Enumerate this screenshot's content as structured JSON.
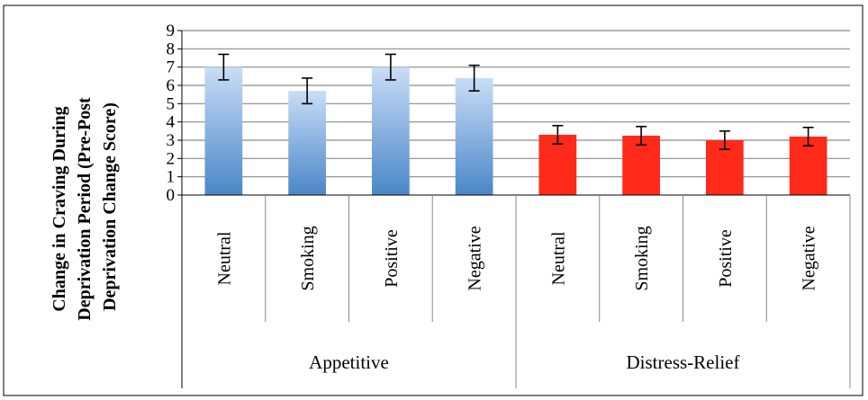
{
  "chart_data": {
    "type": "bar",
    "title": "",
    "ylabel_lines": [
      "Change in Craving During",
      "Deprivation Period (Pre-Post",
      "Deprivation Change Score)"
    ],
    "xlabel": "",
    "ylim": [
      0,
      9
    ],
    "yticks": [
      0,
      1,
      2,
      3,
      4,
      5,
      6,
      7,
      8,
      9
    ],
    "grid": true,
    "legend": "none",
    "groups": [
      {
        "name": "Appetitive",
        "color_top": "#c9ddf7",
        "color_bottom": "#4a86c8",
        "categories": [
          "Neutral",
          "Smoking",
          "Positive",
          "Negative"
        ],
        "values": [
          7.0,
          5.7,
          7.0,
          6.4
        ],
        "errors": [
          0.7,
          0.7,
          0.7,
          0.7
        ]
      },
      {
        "name": "Distress-Relief",
        "color_top": "#ff2a1a",
        "color_bottom": "#ff2a1a",
        "categories": [
          "Neutral",
          "Smoking",
          "Positive",
          "Negative"
        ],
        "values": [
          3.3,
          3.25,
          3.0,
          3.2
        ],
        "errors": [
          0.5,
          0.5,
          0.5,
          0.5
        ]
      }
    ]
  }
}
